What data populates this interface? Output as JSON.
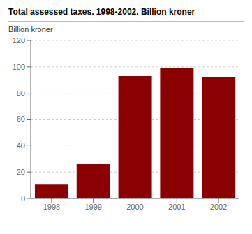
{
  "chart_data": {
    "type": "bar",
    "title": "Total assessed taxes. 1998-2002. Billion kroner",
    "ylabel": "Billion kroner",
    "categories": [
      "1998",
      "1999",
      "2000",
      "2001",
      "2002"
    ],
    "values": [
      11,
      26,
      93,
      99,
      92
    ],
    "color": "#8B0000",
    "ylim": [
      0,
      120
    ],
    "yticks": [
      0,
      20,
      40,
      60,
      80,
      100,
      120
    ],
    "grid": true
  }
}
